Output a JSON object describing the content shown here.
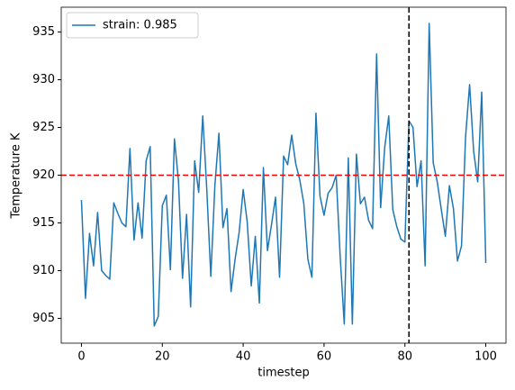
{
  "chart_data": {
    "type": "line",
    "xlabel": "timestep",
    "ylabel": "Temperature K",
    "x": [
      0,
      1,
      2,
      3,
      4,
      5,
      6,
      7,
      8,
      9,
      10,
      11,
      12,
      13,
      14,
      15,
      16,
      17,
      18,
      19,
      20,
      21,
      22,
      23,
      24,
      25,
      26,
      27,
      28,
      29,
      30,
      31,
      32,
      33,
      34,
      35,
      36,
      37,
      38,
      39,
      40,
      41,
      42,
      43,
      44,
      45,
      46,
      47,
      48,
      49,
      50,
      51,
      52,
      53,
      54,
      55,
      56,
      57,
      58,
      59,
      60,
      61,
      62,
      63,
      64,
      65,
      66,
      67,
      68,
      69,
      70,
      71,
      72,
      73,
      74,
      75,
      76,
      77,
      78,
      79,
      80,
      81,
      82,
      83,
      84,
      85,
      86,
      87,
      88,
      89,
      90,
      91,
      92,
      93,
      94,
      95,
      96,
      97,
      98,
      99,
      100
    ],
    "series": [
      {
        "name": "strain: 0.985",
        "color": "#1f77b4",
        "values": [
          917.4,
          907.1,
          913.9,
          910.5,
          916.1,
          910.0,
          909.5,
          909.1,
          917.1,
          916.0,
          915.0,
          914.6,
          922.8,
          913.2,
          917.1,
          913.4,
          921.5,
          923.0,
          904.2,
          905.2,
          916.8,
          917.9,
          910.1,
          923.8,
          919.4,
          909.2,
          915.9,
          906.2,
          921.5,
          918.2,
          926.2,
          918.5,
          909.4,
          918.9,
          924.4,
          914.5,
          916.5,
          907.8,
          911.2,
          914.0,
          918.5,
          915.1,
          908.4,
          913.6,
          906.6,
          920.8,
          912.1,
          914.8,
          917.7,
          909.3,
          922.0,
          921.1,
          924.2,
          921.2,
          919.5,
          917.0,
          911.2,
          909.3,
          926.5,
          917.8,
          915.8,
          918.1,
          918.7,
          920.0,
          911.4,
          904.4,
          921.8,
          904.4,
          922.2,
          917.0,
          917.7,
          915.3,
          914.4,
          932.7,
          916.6,
          922.9,
          926.2,
          916.4,
          914.6,
          913.3,
          913.0,
          925.7,
          925.0,
          918.8,
          921.5,
          910.5,
          935.9,
          921.3,
          919.3,
          916.4,
          913.6,
          918.9,
          916.5,
          911.0,
          912.6,
          924.0,
          929.5,
          922.5,
          919.3,
          928.7,
          910.8
        ]
      }
    ],
    "hlines": [
      {
        "y": 920,
        "color": "#ff0000"
      }
    ],
    "vlines": [
      {
        "x": 81,
        "color": "#000000"
      }
    ],
    "xlim": [
      -5,
      105
    ],
    "xticks": [
      0,
      20,
      40,
      60,
      80,
      100
    ],
    "ylim": [
      902.4,
      937.6
    ],
    "yticks": [
      905,
      910,
      915,
      920,
      925,
      930,
      935
    ],
    "legend": "upper left",
    "grid": false
  }
}
